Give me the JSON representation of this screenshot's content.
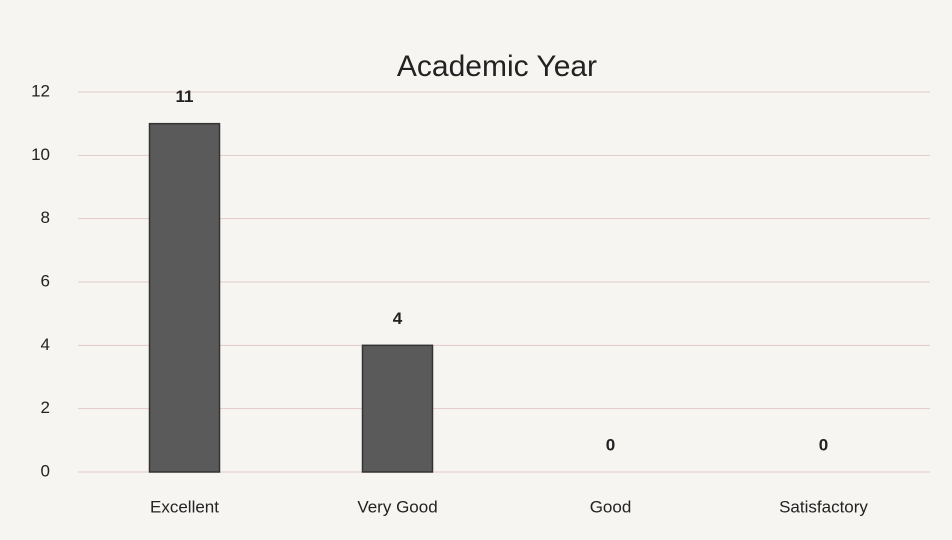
{
  "chart_data": {
    "type": "bar",
    "title": "Academic Year",
    "categories": [
      "Excellent",
      "Very Good",
      "Good",
      "Satisfactory"
    ],
    "values": [
      11,
      4,
      0,
      0
    ],
    "color": "#5a5a5a",
    "ylim": [
      0,
      12
    ],
    "yticks": [
      0,
      2,
      4,
      6,
      8,
      10,
      12
    ],
    "grid": true
  }
}
